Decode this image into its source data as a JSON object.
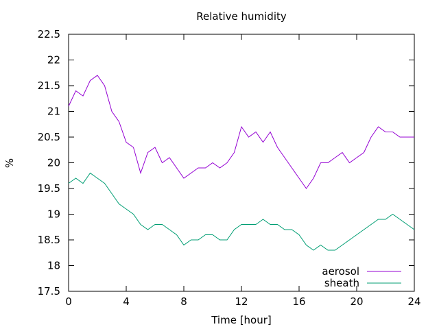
{
  "chart_data": {
    "type": "line",
    "title": "Relative humidity",
    "xlabel": "Time [hour]",
    "ylabel": "%",
    "xlim": [
      0,
      24
    ],
    "ylim": [
      17.5,
      22.5
    ],
    "xticks": [
      0,
      4,
      8,
      12,
      16,
      20,
      24
    ],
    "xtick_labels": [
      "0",
      "4",
      "8",
      "12",
      "16",
      "20",
      "24"
    ],
    "yticks": [
      17.5,
      18,
      18.5,
      19,
      19.5,
      20,
      20.5,
      21,
      21.5,
      22,
      22.5
    ],
    "ytick_labels": [
      "17.5",
      "18",
      "18.5",
      "19",
      "19.5",
      "20",
      "20.5",
      "21",
      "21.5",
      "22",
      "22.5"
    ],
    "grid": false,
    "legend_position": "bottom-right",
    "x": [
      0,
      0.5,
      1,
      1.5,
      2,
      2.5,
      3,
      3.5,
      4,
      4.5,
      5,
      5.5,
      6,
      6.5,
      7,
      7.5,
      8,
      8.5,
      9,
      9.5,
      10,
      10.5,
      11,
      11.5,
      12,
      12.5,
      13,
      13.5,
      14,
      14.5,
      15,
      15.5,
      16,
      16.5,
      17,
      17.5,
      18,
      18.5,
      19,
      19.5,
      20,
      20.5,
      21,
      21.5,
      22,
      22.5,
      23,
      23.5,
      24
    ],
    "series": [
      {
        "name": "aerosol",
        "color": "#9400d3",
        "values": [
          21.1,
          21.4,
          21.3,
          21.6,
          21.7,
          21.5,
          21.0,
          20.8,
          20.4,
          20.3,
          19.8,
          20.2,
          20.3,
          20.0,
          20.1,
          19.9,
          19.7,
          19.8,
          19.9,
          19.9,
          20.0,
          19.9,
          20.0,
          20.2,
          20.7,
          20.5,
          20.6,
          20.4,
          20.6,
          20.3,
          20.1,
          19.9,
          19.7,
          19.5,
          19.7,
          20.0,
          20.0,
          20.1,
          20.2,
          20.0,
          20.1,
          20.2,
          20.5,
          20.7,
          20.6,
          20.6,
          20.5,
          20.5,
          20.5
        ]
      },
      {
        "name": "sheath",
        "color": "#009e73",
        "values": [
          19.6,
          19.7,
          19.6,
          19.8,
          19.7,
          19.6,
          19.4,
          19.2,
          19.1,
          19.0,
          18.8,
          18.7,
          18.8,
          18.8,
          18.7,
          18.6,
          18.4,
          18.5,
          18.5,
          18.6,
          18.6,
          18.5,
          18.5,
          18.7,
          18.8,
          18.8,
          18.8,
          18.9,
          18.8,
          18.8,
          18.7,
          18.7,
          18.6,
          18.4,
          18.3,
          18.4,
          18.3,
          18.3,
          18.4,
          18.5,
          18.6,
          18.7,
          18.8,
          18.9,
          18.9,
          19.0,
          18.9,
          18.8,
          18.7
        ]
      }
    ]
  }
}
